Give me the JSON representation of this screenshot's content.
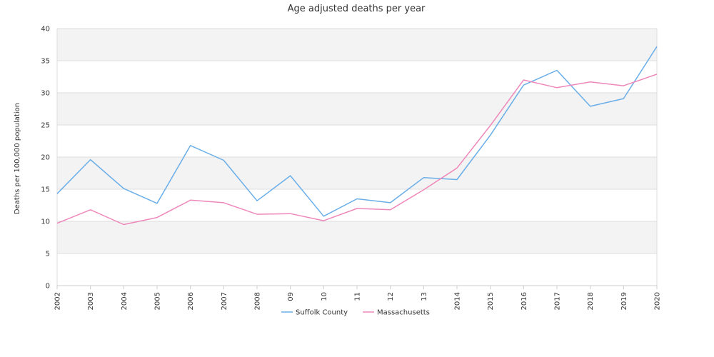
{
  "chart_data": {
    "type": "line",
    "title": "Age adjusted deaths per year",
    "xlabel": "",
    "ylabel": "Deaths per 100,000 population",
    "categories": [
      "2002",
      "2003",
      "2004",
      "2005",
      "2006",
      "2007",
      "2008",
      "09",
      "10",
      "11",
      "12",
      "13",
      "2014",
      "2015",
      "2016",
      "2017",
      "2018",
      "2019",
      "2020"
    ],
    "ylim": [
      0,
      40
    ],
    "yticks": [
      0,
      5,
      10,
      15,
      20,
      25,
      30,
      35,
      40
    ],
    "grid": "horizontal alternating bands",
    "legend_position": "bottom-center",
    "series": [
      {
        "name": "Suffolk County",
        "color": "#6aaee8",
        "values": [
          14.3,
          19.6,
          15.1,
          12.8,
          21.8,
          19.5,
          13.2,
          17.1,
          10.8,
          13.5,
          12.9,
          16.8,
          16.5,
          23.4,
          31.2,
          33.5,
          27.9,
          29.1,
          37.2
        ]
      },
      {
        "name": "Massachusetts",
        "color": "#ee88bb",
        "values": [
          9.7,
          11.8,
          9.5,
          10.6,
          13.3,
          12.9,
          11.1,
          11.2,
          10.1,
          12.0,
          11.8,
          14.9,
          18.3,
          24.9,
          32.0,
          30.8,
          31.7,
          31.1,
          32.9
        ]
      }
    ]
  }
}
